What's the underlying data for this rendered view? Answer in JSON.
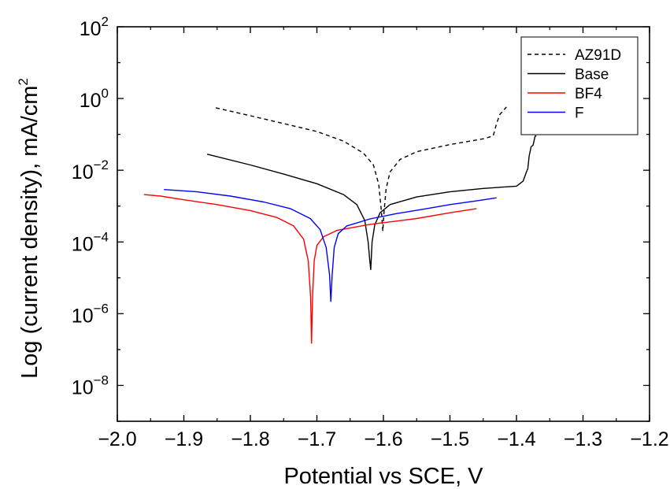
{
  "chart_data": {
    "type": "line",
    "xlabel": "Potential vs SCE,  V",
    "ylabel_main": "Log (current density),  mA/cm",
    "ylabel_sup": "2",
    "ylabel": "Log (current density),  mA/cm2",
    "xlim": [
      -2.0,
      -1.2
    ],
    "ylim_log10": [
      -9,
      2
    ],
    "y_scale": "log",
    "grid": false,
    "legend_position": "top-right",
    "x_ticks": [
      {
        "value": -2.0,
        "label": "−2.0"
      },
      {
        "value": -1.9,
        "label": "−1.9"
      },
      {
        "value": -1.8,
        "label": "−1.8"
      },
      {
        "value": -1.7,
        "label": "−1.7"
      },
      {
        "value": -1.6,
        "label": "−1.6"
      },
      {
        "value": -1.5,
        "label": "−1.5"
      },
      {
        "value": -1.4,
        "label": "−1.4"
      },
      {
        "value": -1.3,
        "label": "−1.3"
      },
      {
        "value": -1.2,
        "label": "−1.2"
      }
    ],
    "y_ticks": [
      {
        "exp": 2,
        "base": "10",
        "sup": "2"
      },
      {
        "exp": 0,
        "base": "10",
        "sup": "0"
      },
      {
        "exp": -2,
        "base": "10",
        "sup": "−2"
      },
      {
        "exp": -4,
        "base": "10",
        "sup": "−4"
      },
      {
        "exp": -6,
        "base": "10",
        "sup": "−6"
      },
      {
        "exp": -8,
        "base": "10",
        "sup": "−8"
      }
    ],
    "series": [
      {
        "name": "AZ91D",
        "color": "#000000",
        "dash": "dashed",
        "points": [
          [
            -1.852,
            0.55
          ],
          [
            -1.8,
            0.33
          ],
          [
            -1.75,
            0.2
          ],
          [
            -1.7,
            0.12
          ],
          [
            -1.66,
            0.065
          ],
          [
            -1.63,
            0.03
          ],
          [
            -1.615,
            0.014
          ],
          [
            -1.607,
            0.004
          ],
          [
            -1.603,
            0.0007
          ],
          [
            -1.601,
            0.0002
          ],
          [
            -1.599,
            0.0007
          ],
          [
            -1.596,
            0.003
          ],
          [
            -1.59,
            0.009
          ],
          [
            -1.575,
            0.02
          ],
          [
            -1.55,
            0.033
          ],
          [
            -1.5,
            0.052
          ],
          [
            -1.45,
            0.075
          ],
          [
            -1.435,
            0.09
          ],
          [
            -1.43,
            0.2
          ],
          [
            -1.425,
            0.36
          ],
          [
            -1.415,
            0.58
          ]
        ]
      },
      {
        "name": "Base",
        "color": "#000000",
        "dash": "solid",
        "points": [
          [
            -1.865,
            0.028
          ],
          [
            -1.8,
            0.014
          ],
          [
            -1.75,
            0.0078
          ],
          [
            -1.7,
            0.0042
          ],
          [
            -1.66,
            0.0021
          ],
          [
            -1.64,
            0.0011
          ],
          [
            -1.628,
            0.0004
          ],
          [
            -1.623,
            0.0001
          ],
          [
            -1.6205,
            3e-05
          ],
          [
            -1.619,
            1.7e-05
          ],
          [
            -1.617,
            0.0001
          ],
          [
            -1.613,
            0.0003
          ],
          [
            -1.605,
            0.00065
          ],
          [
            -1.59,
            0.0011
          ],
          [
            -1.55,
            0.0018
          ],
          [
            -1.5,
            0.0025
          ],
          [
            -1.45,
            0.0031
          ],
          [
            -1.4,
            0.0036
          ],
          [
            -1.39,
            0.005
          ],
          [
            -1.385,
            0.009
          ],
          [
            -1.383,
            0.011
          ],
          [
            -1.381,
            0.025
          ],
          [
            -1.378,
            0.045
          ],
          [
            -1.375,
            0.05
          ],
          [
            -1.372,
            0.09
          ],
          [
            -1.37,
            0.09
          ]
        ]
      },
      {
        "name": "BF4",
        "color": "#ff0000",
        "dash": "solid",
        "points": [
          [
            -1.96,
            0.0021
          ],
          [
            -1.935,
            0.0019
          ],
          [
            -1.9,
            0.0015
          ],
          [
            -1.85,
            0.0011
          ],
          [
            -1.8,
            0.00075
          ],
          [
            -1.76,
            0.00048
          ],
          [
            -1.735,
            0.00028
          ],
          [
            -1.72,
            0.00012
          ],
          [
            -1.713,
            3e-05
          ],
          [
            -1.7095,
            3e-06
          ],
          [
            -1.708,
            1.5e-07
          ],
          [
            -1.7065,
            3e-06
          ],
          [
            -1.704,
            3e-05
          ],
          [
            -1.7,
            8e-05
          ],
          [
            -1.69,
            0.00014
          ],
          [
            -1.67,
            0.00021
          ],
          [
            -1.62,
            0.00031
          ],
          [
            -1.55,
            0.00045
          ],
          [
            -1.5,
            0.00065
          ],
          [
            -1.46,
            0.00085
          ]
        ]
      },
      {
        "name": "F",
        "color": "#0000ff",
        "dash": "solid",
        "points": [
          [
            -1.93,
            0.0029
          ],
          [
            -1.88,
            0.0025
          ],
          [
            -1.83,
            0.0019
          ],
          [
            -1.78,
            0.0013
          ],
          [
            -1.74,
            0.00085
          ],
          [
            -1.71,
            0.00045
          ],
          [
            -1.695,
            0.00022
          ],
          [
            -1.686,
            7e-05
          ],
          [
            -1.681,
            1.2e-05
          ],
          [
            -1.679,
            2.2e-06
          ],
          [
            -1.677,
            1.2e-05
          ],
          [
            -1.674,
            7e-05
          ],
          [
            -1.668,
            0.00017
          ],
          [
            -1.655,
            0.00028
          ],
          [
            -1.62,
            0.00044
          ],
          [
            -1.58,
            0.00062
          ],
          [
            -1.54,
            0.00082
          ],
          [
            -1.5,
            0.0011
          ],
          [
            -1.46,
            0.0014
          ],
          [
            -1.43,
            0.0017
          ]
        ]
      }
    ]
  }
}
